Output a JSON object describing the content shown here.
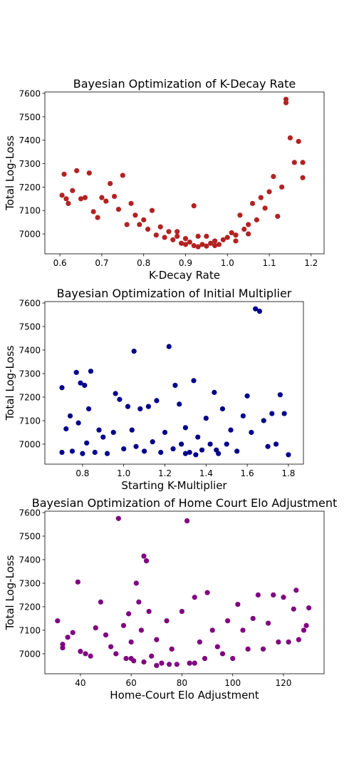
{
  "chart_data": [
    {
      "type": "scatter",
      "title": "Bayesian Optimization of K-Decay Rate",
      "x_label": "K-Decay Rate",
      "y_label": "Total Log-Loss",
      "color": "#b22222",
      "xlim": [
        0.564,
        1.231
      ],
      "ylim": [
        6915,
        7606
      ],
      "xticks": [
        0.6,
        0.7,
        0.8,
        0.9,
        {
          "value": 1.0,
          "label": "1.0"
        },
        1.1,
        1.2
      ],
      "yticks": [
        7000,
        7100,
        7200,
        7300,
        7400,
        7500,
        7600
      ],
      "x": [
        0.605,
        0.61,
        0.615,
        0.62,
        0.63,
        0.64,
        0.65,
        0.66,
        0.67,
        0.68,
        0.69,
        0.7,
        0.71,
        0.72,
        0.73,
        0.74,
        0.75,
        0.76,
        0.77,
        0.78,
        0.79,
        0.8,
        0.81,
        0.82,
        0.83,
        0.84,
        0.85,
        0.86,
        0.87,
        0.88,
        0.89,
        0.9,
        0.91,
        0.92,
        0.92,
        0.93,
        0.94,
        0.95,
        0.96,
        0.97,
        0.98,
        0.99,
        1.0,
        1.01,
        1.02,
        1.03,
        1.04,
        1.05,
        1.06,
        1.07,
        1.08,
        1.09,
        1.1,
        1.11,
        1.12,
        1.13,
        1.14,
        1.14,
        1.15,
        1.16,
        1.17,
        1.18,
        1.18,
        0.9,
        0.95,
        0.88,
        1.02,
        0.97,
        0.93,
        1.05
      ],
      "y": [
        7165,
        7255,
        7150,
        7130,
        7185,
        7270,
        7150,
        7155,
        7260,
        7095,
        7070,
        7155,
        7140,
        7215,
        7160,
        7105,
        7250,
        7040,
        7130,
        7080,
        7040,
        7060,
        7020,
        7100,
        6995,
        7030,
        6985,
        7010,
        6975,
        6990,
        6960,
        6955,
        6965,
        7120,
        6950,
        6945,
        6955,
        6948,
        6960,
        6970,
        6955,
        6975,
        6985,
        7005,
        6995,
        7080,
        7020,
        7040,
        7130,
        7060,
        7155,
        7110,
        7180,
        7245,
        7075,
        7200,
        7575,
        7560,
        7410,
        7305,
        7395,
        7305,
        7240,
        6980,
        6990,
        7010,
        6970,
        6950,
        6990,
        7000
      ]
    },
    {
      "type": "scatter",
      "title": "Bayesian Optimization of Initial Multiplier",
      "x_label": "Starting K-Multiplier",
      "y_label": "Total Log-Loss",
      "color": "#00008b",
      "xlim": [
        0.617,
        1.873
      ],
      "ylim": [
        6915,
        7606
      ],
      "xticks": [
        0.8,
        {
          "value": 1.0,
          "label": "1.0"
        },
        1.2,
        1.4,
        1.6,
        1.8
      ],
      "yticks": [
        7000,
        7100,
        7200,
        7300,
        7400,
        7500,
        7600
      ],
      "x": [
        0.7,
        0.7,
        0.72,
        0.74,
        0.75,
        0.77,
        0.78,
        0.79,
        0.8,
        0.81,
        0.82,
        0.83,
        0.84,
        0.86,
        0.88,
        0.9,
        0.92,
        0.95,
        0.96,
        0.98,
        1.0,
        1.02,
        1.04,
        1.05,
        1.06,
        1.08,
        1.1,
        1.12,
        1.14,
        1.16,
        1.18,
        1.2,
        1.22,
        1.24,
        1.25,
        1.27,
        1.28,
        1.3,
        1.32,
        1.34,
        1.36,
        1.38,
        1.4,
        1.42,
        1.44,
        1.46,
        1.48,
        1.5,
        1.52,
        1.55,
        1.58,
        1.6,
        1.62,
        1.64,
        1.66,
        1.68,
        1.7,
        1.72,
        1.74,
        1.76,
        1.78,
        1.8,
        1.3,
        1.35,
        1.45
      ],
      "y": [
        7240,
        6965,
        7065,
        7120,
        6970,
        7305,
        7090,
        7260,
        6960,
        7250,
        7005,
        7150,
        7310,
        6965,
        7060,
        7030,
        6960,
        7050,
        7215,
        7190,
        6980,
        7160,
        7060,
        7395,
        6990,
        7150,
        6970,
        7160,
        7010,
        7185,
        6965,
        7050,
        7415,
        6980,
        7250,
        7170,
        7000,
        7070,
        6965,
        7270,
        7030,
        6975,
        7110,
        7000,
        7220,
        6960,
        7150,
        7000,
        7060,
        6970,
        7120,
        7205,
        7050,
        7575,
        7565,
        7100,
        6990,
        7130,
        7000,
        7210,
        7130,
        6955,
        6960,
        6955,
        6975
      ]
    },
    {
      "type": "scatter",
      "title": "Bayesian Optimization of Home Court Elo Adjustment",
      "x_label": "Home-Court Elo Adjustment",
      "y_label": "Total Log-Loss",
      "color": "#800080",
      "xlim": [
        26,
        136
      ],
      "ylim": [
        6915,
        7606
      ],
      "xticks": [
        40,
        60,
        80,
        100,
        120
      ],
      "yticks": [
        7000,
        7100,
        7200,
        7300,
        7400,
        7500,
        7600
      ],
      "x": [
        31,
        33,
        33,
        35,
        37,
        39,
        40,
        42,
        44,
        46,
        48,
        50,
        52,
        54,
        55,
        57,
        58,
        59,
        60,
        61,
        62,
        63,
        64,
        65,
        66,
        67,
        68,
        70,
        72,
        74,
        76,
        78,
        80,
        82,
        83,
        85,
        87,
        89,
        90,
        92,
        94,
        96,
        98,
        100,
        102,
        104,
        106,
        108,
        110,
        112,
        114,
        116,
        118,
        120,
        122,
        124,
        125,
        126,
        128,
        129,
        130,
        70,
        75,
        85,
        65,
        60
      ],
      "y": [
        7140,
        7040,
        7025,
        7070,
        7090,
        7305,
        7010,
        7000,
        6990,
        7110,
        7220,
        7080,
        7030,
        7000,
        7575,
        7120,
        6980,
        7170,
        7050,
        6970,
        7300,
        7220,
        7100,
        7415,
        7395,
        7180,
        6990,
        7060,
        6960,
        7140,
        7020,
        6955,
        7180,
        7565,
        6960,
        7240,
        7050,
        6980,
        7260,
        7100,
        7030,
        7000,
        7140,
        6980,
        7210,
        7100,
        7020,
        7150,
        7250,
        7020,
        7130,
        7250,
        7050,
        7240,
        7050,
        7190,
        7270,
        7060,
        7100,
        7120,
        7195,
        6950,
        6955,
        6960,
        6965,
        6980
      ]
    }
  ]
}
